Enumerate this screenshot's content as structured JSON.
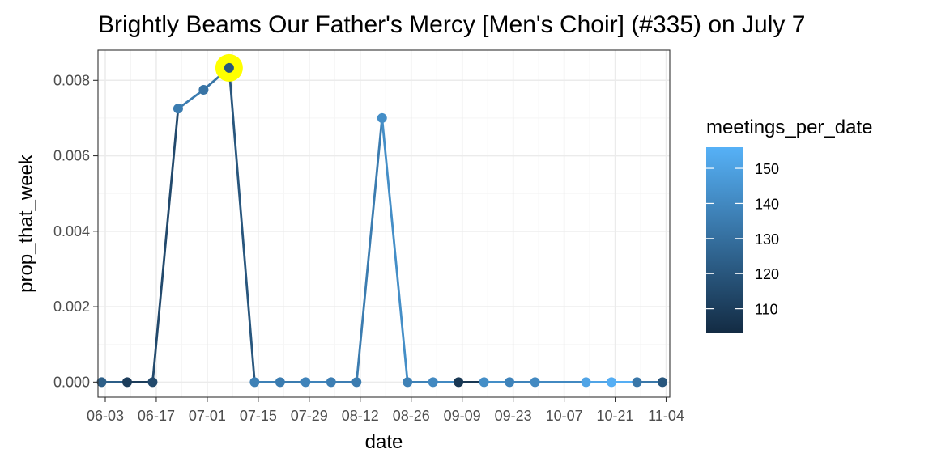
{
  "chart_data": {
    "type": "line",
    "title": "Brightly Beams Our Father's Mercy [Men's Choir] (#335) on July 7",
    "xlabel": "date",
    "ylabel": "prop_that_week",
    "x_tick_labels": [
      "06-03",
      "06-17",
      "07-01",
      "07-15",
      "07-29",
      "08-12",
      "08-26",
      "09-09",
      "09-23",
      "10-07",
      "10-21",
      "11-04"
    ],
    "y_tick_labels": [
      "0.000",
      "0.002",
      "0.004",
      "0.006",
      "0.008"
    ],
    "y_ticks": [
      0,
      0.002,
      0.004,
      0.006,
      0.008
    ],
    "ylim": [
      -0.0004,
      0.0088
    ],
    "xlim": [
      "2019-06-01",
      "2019-11-05"
    ],
    "grid": true,
    "x": [
      "2019-06-02",
      "2019-06-09",
      "2019-06-16",
      "2019-06-23",
      "2019-06-30",
      "2019-07-07",
      "2019-07-14",
      "2019-07-21",
      "2019-07-28",
      "2019-08-04",
      "2019-08-11",
      "2019-08-18",
      "2019-08-25",
      "2019-09-01",
      "2019-09-08",
      "2019-09-15",
      "2019-09-22",
      "2019-09-29",
      "2019-10-13",
      "2019-10-20",
      "2019-10-27",
      "2019-11-03"
    ],
    "series": [
      {
        "values": [
          0,
          0,
          0,
          0.00725,
          0.00775,
          0.00833,
          0,
          0,
          0,
          0,
          0,
          0.007,
          0,
          0,
          0,
          0,
          0,
          0,
          0,
          0,
          0,
          0
        ],
        "meetings_per_date": [
          123,
          110,
          115,
          135,
          132,
          120,
          137,
          135,
          138,
          136,
          135,
          142,
          137,
          140,
          108,
          142,
          138,
          140,
          151,
          155,
          133,
          120
        ]
      }
    ],
    "highlight": {
      "x": "2019-07-07",
      "y": 0.00833,
      "color": "#ffff00"
    },
    "legend": {
      "title": "meetings_per_date",
      "placement": "right",
      "labels": [
        "110",
        "120",
        "130",
        "140",
        "150"
      ],
      "values": [
        110,
        120,
        130,
        140,
        150
      ],
      "range": [
        103,
        156
      ],
      "color_low": "#132b43",
      "color_high": "#56b1f7"
    },
    "colors": {
      "panel_border": "#333333",
      "grid_major": "#ebebeb",
      "grid_minor": "#f5f5f5"
    }
  }
}
